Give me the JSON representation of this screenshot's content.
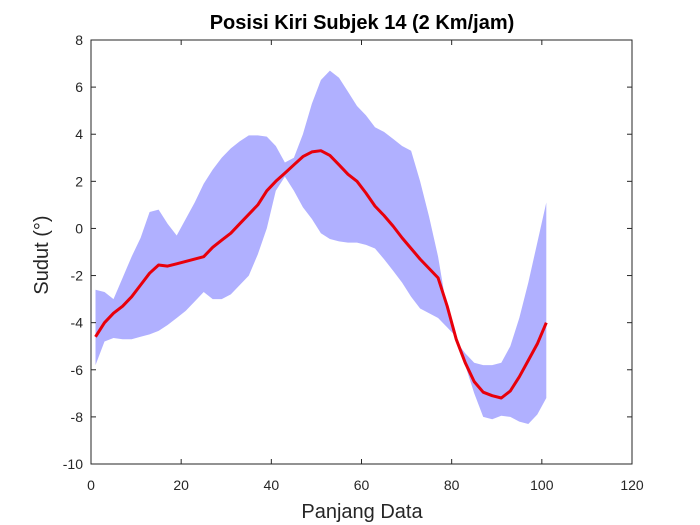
{
  "chart_data": {
    "type": "area",
    "title": "Posisi Kiri Subjek 14 (2 Km/jam)",
    "xlabel": "Panjang Data",
    "ylabel": "Sudut (°)",
    "xlim": [
      0,
      120
    ],
    "ylim": [
      -10,
      8
    ],
    "xticks": [
      "0",
      "20",
      "40",
      "60",
      "80",
      "100",
      "120"
    ],
    "yticks": [
      "-10",
      "-8",
      "-6",
      "-4",
      "-2",
      "0",
      "2",
      "4",
      "6",
      "8"
    ],
    "grid": false,
    "legend": "none",
    "colors": {
      "mean_line": "#e8000b",
      "band_fill": "#b0b0ff",
      "axes": "#262626"
    },
    "series": [
      {
        "role": "mean",
        "x": [
          1,
          3,
          5,
          7,
          9,
          11,
          13,
          15,
          17,
          19,
          21,
          23,
          25,
          27,
          29,
          31,
          33,
          35,
          37,
          39,
          41,
          43,
          45,
          47,
          49,
          51,
          53,
          55,
          57,
          59,
          61,
          63,
          65,
          67,
          69,
          71,
          73,
          75,
          77,
          79,
          81,
          83,
          85,
          87,
          89,
          91,
          93,
          95,
          97,
          99,
          101
        ],
        "values": [
          -4.6,
          -4.0,
          -3.6,
          -3.3,
          -2.9,
          -2.4,
          -1.9,
          -1.55,
          -1.6,
          -1.5,
          -1.4,
          -1.3,
          -1.2,
          -0.8,
          -0.5,
          -0.2,
          0.2,
          0.6,
          1.0,
          1.6,
          2.0,
          2.35,
          2.7,
          3.05,
          3.25,
          3.3,
          3.1,
          2.7,
          2.3,
          2.0,
          1.5,
          0.95,
          0.55,
          0.1,
          -0.4,
          -0.85,
          -1.3,
          -1.7,
          -2.1,
          -3.3,
          -4.7,
          -5.7,
          -6.5,
          -6.95,
          -7.1,
          -7.2,
          -6.9,
          -6.3,
          -5.6,
          -4.9,
          -4.0
        ]
      },
      {
        "role": "upper",
        "x": [
          1,
          3,
          5,
          7,
          9,
          11,
          13,
          15,
          17,
          19,
          21,
          23,
          25,
          27,
          29,
          31,
          33,
          35,
          37,
          39,
          41,
          43,
          45,
          47,
          49,
          51,
          53,
          55,
          57,
          59,
          61,
          63,
          65,
          67,
          69,
          71,
          73,
          75,
          77,
          79,
          81,
          83,
          85,
          87,
          89,
          91,
          93,
          95,
          97,
          99,
          101
        ],
        "values": [
          -2.6,
          -2.7,
          -3.0,
          -2.1,
          -1.2,
          -0.4,
          0.7,
          0.8,
          0.2,
          -0.3,
          0.4,
          1.1,
          1.9,
          2.5,
          3.0,
          3.4,
          3.7,
          3.95,
          3.95,
          3.9,
          3.5,
          2.8,
          3.0,
          4.0,
          5.3,
          6.3,
          6.7,
          6.4,
          5.8,
          5.2,
          4.8,
          4.3,
          4.1,
          3.8,
          3.5,
          3.3,
          2.0,
          0.5,
          -1.2,
          -3.5,
          -4.8,
          -5.3,
          -5.7,
          -5.8,
          -5.8,
          -5.7,
          -5.0,
          -3.8,
          -2.3,
          -0.6,
          1.1
        ]
      },
      {
        "role": "lower",
        "x": [
          1,
          3,
          5,
          7,
          9,
          11,
          13,
          15,
          17,
          19,
          21,
          23,
          25,
          27,
          29,
          31,
          33,
          35,
          37,
          39,
          41,
          43,
          45,
          47,
          49,
          51,
          53,
          55,
          57,
          59,
          61,
          63,
          65,
          67,
          69,
          71,
          73,
          75,
          77,
          79,
          81,
          83,
          85,
          87,
          89,
          91,
          93,
          95,
          97,
          99,
          101
        ],
        "values": [
          -5.8,
          -4.8,
          -4.65,
          -4.7,
          -4.7,
          -4.6,
          -4.5,
          -4.35,
          -4.1,
          -3.8,
          -3.5,
          -3.1,
          -2.7,
          -3.0,
          -3.0,
          -2.8,
          -2.4,
          -2.0,
          -1.1,
          0.0,
          1.6,
          2.2,
          1.6,
          0.9,
          0.4,
          -0.2,
          -0.45,
          -0.55,
          -0.6,
          -0.6,
          -0.7,
          -0.85,
          -1.3,
          -1.8,
          -2.3,
          -2.9,
          -3.4,
          -3.6,
          -3.8,
          -4.2,
          -4.6,
          -5.8,
          -7.0,
          -8.0,
          -8.1,
          -7.95,
          -8.0,
          -8.2,
          -8.3,
          -7.9,
          -7.2
        ]
      }
    ]
  }
}
